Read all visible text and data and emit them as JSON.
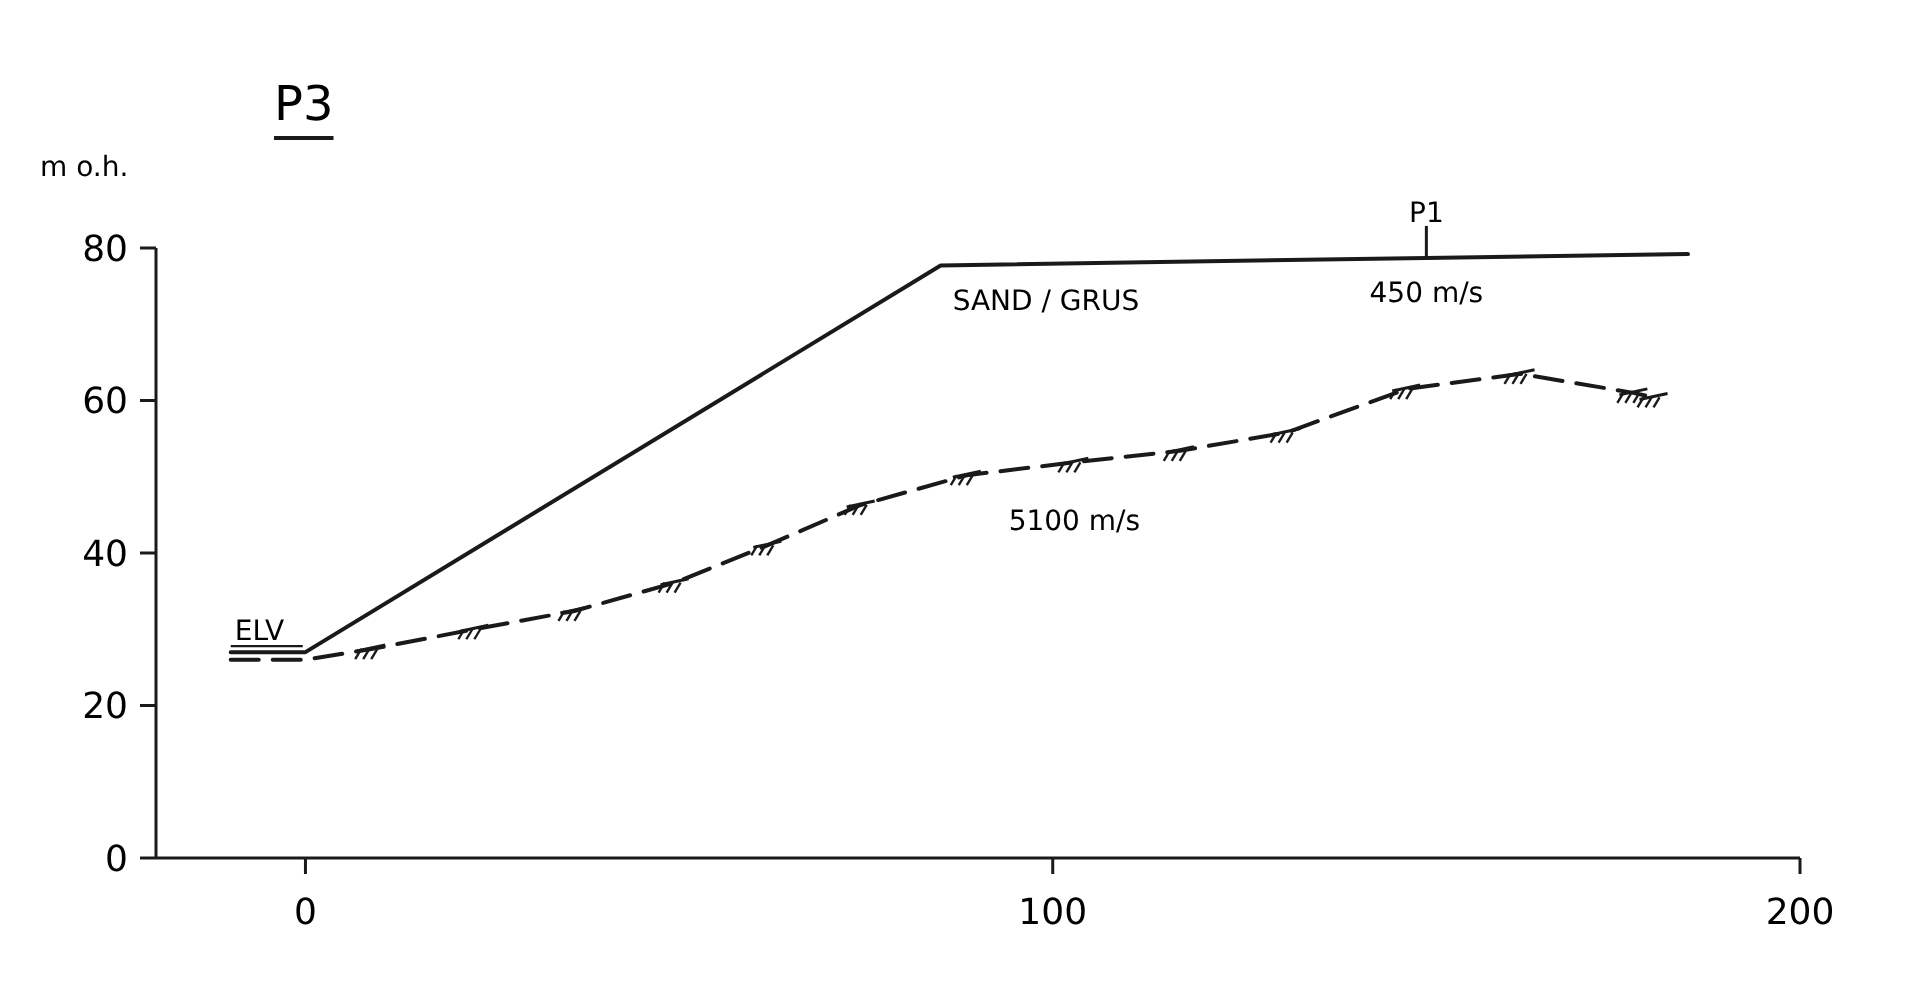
{
  "chart_data": {
    "type": "line",
    "title": "P3",
    "ylabel": "m o.h.",
    "xlim": [
      -20,
      200
    ],
    "xticks": [
      0,
      100,
      200
    ],
    "ylim": [
      0,
      80
    ],
    "yticks": [
      0,
      20,
      40,
      60,
      80
    ],
    "grid": false,
    "marker": "none",
    "series": [
      {
        "color": "#1a1a1a",
        "line_style": "solid",
        "x": [
          -10,
          0,
          85,
          150,
          185
        ],
        "values": [
          27,
          27,
          77.7,
          78.7,
          79.2
        ]
      },
      {
        "color": "#1a1a1a",
        "line_style": "dashed",
        "x": [
          -10,
          0,
          8.8,
          22.6,
          36,
          49.4,
          61.8,
          74.3,
          88.5,
          102.9,
          117,
          131.3,
          147.3,
          162.6,
          177.7,
          180.4
        ],
        "values": [
          26,
          26,
          27.4,
          30,
          32.4,
          36.1,
          41,
          46.3,
          50.2,
          51.9,
          53.4,
          55.8,
          61.5,
          63.5,
          61,
          60.4
        ]
      }
    ],
    "annotations": [
      {
        "text": "ELV",
        "x": -10,
        "y": 27
      },
      {
        "text": "SAND / GRUS",
        "x": 85,
        "y": 77.7
      },
      {
        "text": "450 m/s",
        "x": 150,
        "y": 78.7
      },
      {
        "text": "P1",
        "x": 150,
        "y": 78.7
      },
      {
        "text": "5100 m/s",
        "x": 102.9,
        "y": 51.9
      }
    ]
  }
}
